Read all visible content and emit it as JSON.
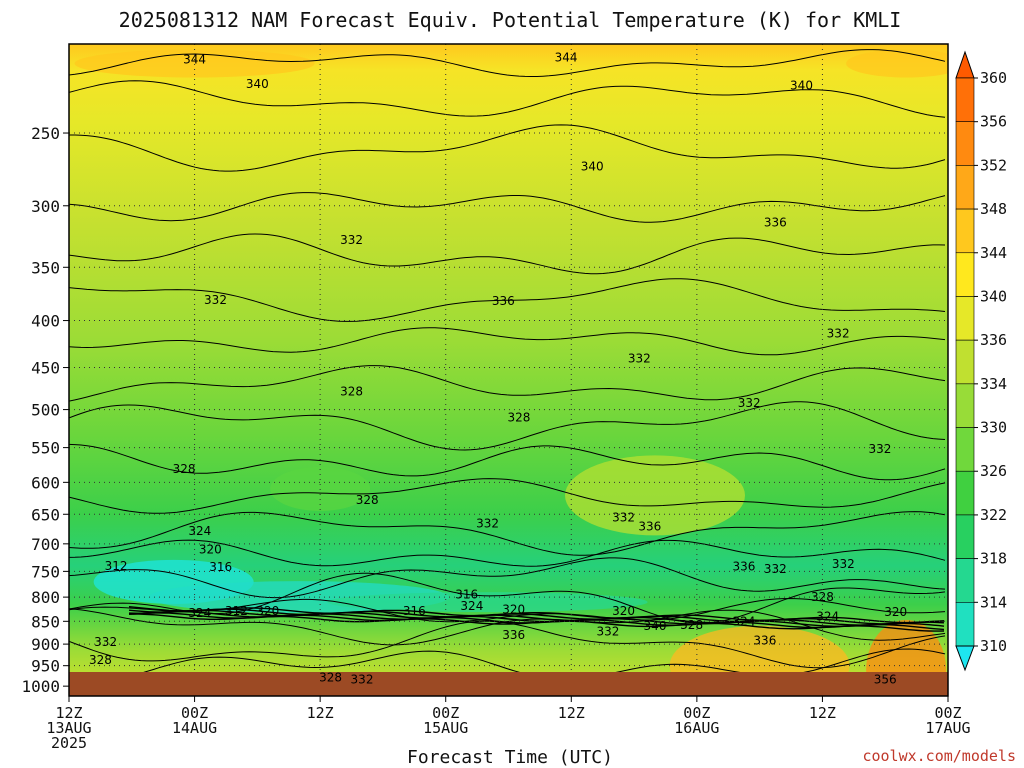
{
  "title": "2025081312 NAM Forecast Equiv. Potential Temperature (K) for KMLI",
  "credit": "coolwx.com/models",
  "chart_data": {
    "type": "heatmap",
    "title": "2025081312 NAM Forecast Equiv. Potential Temperature (K) for KMLI",
    "xlabel": "Forecast Time (UTC)",
    "ylabel": "",
    "y_scale": "log",
    "y_ticks": [
      250,
      300,
      350,
      400,
      450,
      500,
      550,
      600,
      650,
      700,
      750,
      800,
      850,
      900,
      950,
      1000
    ],
    "y_range_hPa": [
      200,
      1025
    ],
    "x_ticks": [
      {
        "hour": 0,
        "label1": "12Z",
        "label2": "13AUG",
        "label3": "2025"
      },
      {
        "hour": 12,
        "label1": "00Z",
        "label2": "14AUG",
        "label3": ""
      },
      {
        "hour": 24,
        "label1": "12Z",
        "label2": "",
        "label3": ""
      },
      {
        "hour": 36,
        "label1": "00Z",
        "label2": "15AUG",
        "label3": ""
      },
      {
        "hour": 48,
        "label1": "12Z",
        "label2": "",
        "label3": ""
      },
      {
        "hour": 60,
        "label1": "00Z",
        "label2": "16AUG",
        "label3": ""
      },
      {
        "hour": 72,
        "label1": "12Z",
        "label2": "",
        "label3": ""
      },
      {
        "hour": 84,
        "label1": "00Z",
        "label2": "17AUG",
        "label3": ""
      }
    ],
    "x_range_hours": [
      0,
      84
    ],
    "grid": true,
    "colorbar": {
      "levels": [
        310,
        314,
        318,
        322,
        326,
        330,
        334,
        336,
        340,
        344,
        348,
        352,
        356,
        360
      ],
      "colors": [
        "#1ee6f0",
        "#20e0c0",
        "#24d890",
        "#28d060",
        "#40d040",
        "#70d83c",
        "#98dc38",
        "#c0e030",
        "#e6e828",
        "#ffe81e",
        "#ffc81e",
        "#ffa818",
        "#ff8a10",
        "#ff7008",
        "#ff5a00"
      ]
    },
    "contour_labels": [
      {
        "hour": 12.0,
        "p": 208,
        "value": "344"
      },
      {
        "hour": 47.5,
        "p": 207,
        "value": "344"
      },
      {
        "hour": 18.0,
        "p": 221,
        "value": "340"
      },
      {
        "hour": 70.0,
        "p": 222,
        "value": "340"
      },
      {
        "hour": 50.0,
        "p": 272,
        "value": "340"
      },
      {
        "hour": 67.5,
        "p": 313,
        "value": "336"
      },
      {
        "hour": 27.0,
        "p": 327,
        "value": "332"
      },
      {
        "hour": 41.5,
        "p": 381,
        "value": "336"
      },
      {
        "hour": 14.0,
        "p": 380,
        "value": "332"
      },
      {
        "hour": 73.5,
        "p": 413,
        "value": "332"
      },
      {
        "hour": 54.5,
        "p": 440,
        "value": "332"
      },
      {
        "hour": 27.0,
        "p": 478,
        "value": "328"
      },
      {
        "hour": 65.0,
        "p": 492,
        "value": "332"
      },
      {
        "hour": 43.0,
        "p": 510,
        "value": "328"
      },
      {
        "hour": 77.5,
        "p": 552,
        "value": "332"
      },
      {
        "hour": 11.0,
        "p": 580,
        "value": "328"
      },
      {
        "hour": 28.5,
        "p": 627,
        "value": "328"
      },
      {
        "hour": 53.0,
        "p": 655,
        "value": "332"
      },
      {
        "hour": 55.5,
        "p": 670,
        "value": "336"
      },
      {
        "hour": 40.0,
        "p": 665,
        "value": "332"
      },
      {
        "hour": 12.5,
        "p": 678,
        "value": "324"
      },
      {
        "hour": 13.5,
        "p": 710,
        "value": "320"
      },
      {
        "hour": 14.5,
        "p": 742,
        "value": "316"
      },
      {
        "hour": 4.5,
        "p": 740,
        "value": "312"
      },
      {
        "hour": 64.5,
        "p": 741,
        "value": "336"
      },
      {
        "hour": 67.5,
        "p": 746,
        "value": "332"
      },
      {
        "hour": 74.0,
        "p": 736,
        "value": "332"
      },
      {
        "hour": 38.0,
        "p": 795,
        "value": "316"
      },
      {
        "hour": 72.0,
        "p": 800,
        "value": "328"
      },
      {
        "hour": 38.5,
        "p": 818,
        "value": "324"
      },
      {
        "hour": 42.5,
        "p": 825,
        "value": "320"
      },
      {
        "hour": 53.0,
        "p": 828,
        "value": "320"
      },
      {
        "hour": 12.5,
        "p": 832,
        "value": "324"
      },
      {
        "hour": 16.0,
        "p": 828,
        "value": "312"
      },
      {
        "hour": 19.0,
        "p": 828,
        "value": "320"
      },
      {
        "hour": 33.0,
        "p": 828,
        "value": "316"
      },
      {
        "hour": 79.0,
        "p": 830,
        "value": "320"
      },
      {
        "hour": 72.5,
        "p": 840,
        "value": "324"
      },
      {
        "hour": 64.5,
        "p": 850,
        "value": "324"
      },
      {
        "hour": 56.0,
        "p": 860,
        "value": "340"
      },
      {
        "hour": 59.5,
        "p": 858,
        "value": "328"
      },
      {
        "hour": 51.5,
        "p": 872,
        "value": "332"
      },
      {
        "hour": 42.5,
        "p": 880,
        "value": "336"
      },
      {
        "hour": 66.5,
        "p": 892,
        "value": "336"
      },
      {
        "hour": 3.5,
        "p": 895,
        "value": "332"
      },
      {
        "hour": 3.0,
        "p": 937,
        "value": "328"
      },
      {
        "hour": 25.0,
        "p": 978,
        "value": "328"
      },
      {
        "hour": 28.0,
        "p": 983,
        "value": "332"
      },
      {
        "hour": 78.0,
        "p": 983,
        "value": "356"
      }
    ]
  }
}
